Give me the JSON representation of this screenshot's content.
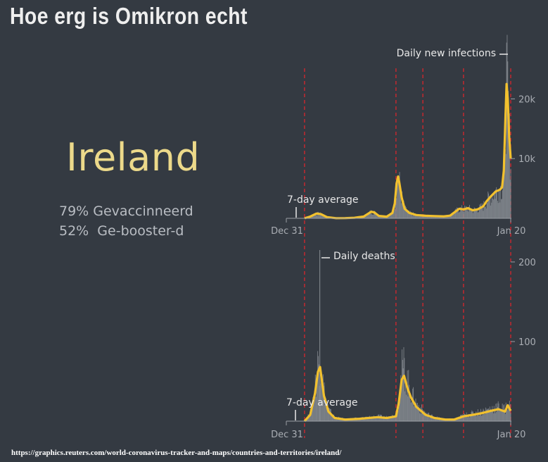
{
  "headline": "Hoe erg is Omikron echt",
  "country": "Ireland",
  "stats": {
    "vaccinated": "79% Gevaccinneerd",
    "boosted": "52%  Ge-booster-d"
  },
  "source_url": "https://graphics.reuters.com/world-coronavirus-tracker-and-maps/countries-and-territories/ireland/",
  "colors": {
    "average_line": "#f2c12e",
    "bars": "#8a8e94",
    "markers": "#d8262c",
    "background": "#343a42"
  },
  "chart_data": [
    {
      "type": "area",
      "title": "Daily new infections",
      "average_label": "7-day average",
      "x_start_label": "Dec 31",
      "x_end_label": "Jan 20",
      "x_range": [
        "2019-12-31",
        "2022-01-20"
      ],
      "ylim": [
        0,
        25000
      ],
      "y_ticks": [
        10000,
        20000
      ],
      "y_tick_labels": [
        "10k",
        "20k"
      ],
      "x": [
        "2020-03-01",
        "2020-03-20",
        "2020-04-10",
        "2020-04-25",
        "2020-05-15",
        "2020-06-15",
        "2020-07-15",
        "2020-08-15",
        "2020-09-15",
        "2020-10-10",
        "2020-10-20",
        "2020-11-05",
        "2020-12-01",
        "2020-12-20",
        "2020-12-28",
        "2021-01-03",
        "2021-01-08",
        "2021-01-12",
        "2021-01-20",
        "2021-01-30",
        "2021-02-15",
        "2021-03-10",
        "2021-04-10",
        "2021-05-10",
        "2021-06-10",
        "2021-07-01",
        "2021-07-20",
        "2021-08-01",
        "2021-08-15",
        "2021-08-30",
        "2021-09-15",
        "2021-10-01",
        "2021-10-20",
        "2021-11-01",
        "2021-11-15",
        "2021-12-01",
        "2021-12-15",
        "2021-12-22",
        "2021-12-28",
        "2022-01-02",
        "2022-01-06",
        "2022-01-10",
        "2022-01-15",
        "2022-01-20"
      ],
      "series": [
        {
          "values": [
            10,
            300,
            800,
            700,
            200,
            20,
            30,
            90,
            300,
            1100,
            1000,
            400,
            280,
            900,
            2500,
            5800,
            7000,
            6000,
            3500,
            1600,
            900,
            550,
            420,
            380,
            330,
            450,
            1150,
            1600,
            1500,
            1700,
            1350,
            1500,
            2000,
            2900,
            3700,
            4500,
            4800,
            5200,
            8000,
            16500,
            22500,
            20000,
            13500,
            10000
          ]
        }
      ],
      "vertical_markers": [
        "2020-03-01",
        "2021-01-01",
        "2021-04-01",
        "2021-08-15",
        "2022-01-20"
      ]
    },
    {
      "type": "area",
      "title": "Daily deaths",
      "average_label": "7-day average",
      "x_start_label": "Dec 31",
      "x_end_label": "Jan 20",
      "x_range": [
        "2019-12-31",
        "2022-01-20"
      ],
      "ylim": [
        0,
        215
      ],
      "y_ticks": [
        100,
        200
      ],
      "y_tick_labels": [
        "100",
        "200"
      ],
      "peak_daily": 215,
      "x": [
        "2020-03-01",
        "2020-03-20",
        "2020-04-05",
        "2020-04-15",
        "2020-04-22",
        "2020-05-05",
        "2020-05-20",
        "2020-06-10",
        "2020-07-15",
        "2020-09-01",
        "2020-11-01",
        "2020-12-01",
        "2021-01-01",
        "2021-01-10",
        "2021-01-20",
        "2021-01-28",
        "2021-02-08",
        "2021-02-20",
        "2021-03-10",
        "2021-04-10",
        "2021-05-10",
        "2021-06-15",
        "2021-07-15",
        "2021-08-15",
        "2021-09-15",
        "2021-10-15",
        "2021-11-15",
        "2021-12-10",
        "2022-01-01",
        "2022-01-10",
        "2022-01-20"
      ],
      "series": [
        {
          "values": [
            0,
            8,
            35,
            62,
            68,
            32,
            12,
            4,
            2,
            3,
            5,
            4,
            6,
            22,
            52,
            57,
            42,
            30,
            18,
            8,
            4,
            2,
            2,
            6,
            8,
            10,
            13,
            15,
            12,
            20,
            13
          ]
        }
      ],
      "vertical_markers": [
        "2020-03-01",
        "2021-01-01",
        "2021-04-01",
        "2021-08-15",
        "2022-01-20"
      ]
    }
  ]
}
